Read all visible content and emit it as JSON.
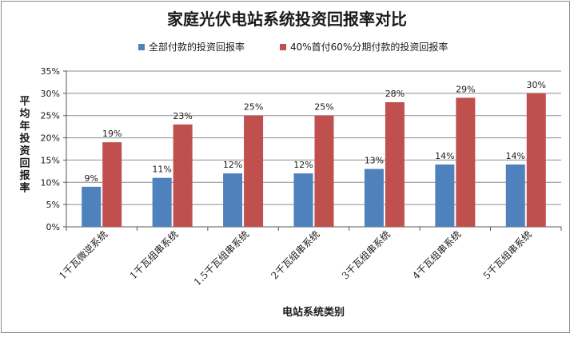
{
  "chart_data": {
    "type": "bar",
    "title": "家庭光伏电站系统投资回报率对比",
    "xlabel": "电站系统类别",
    "ylabel": "平均年投资回报率",
    "categories": [
      "1千瓦微逆系统",
      "1千瓦组串系统",
      "1.5千瓦组串系统",
      "2千瓦组串系统",
      "3千瓦组串系统",
      "4千瓦组串系统",
      "5千瓦组串系统"
    ],
    "series": [
      {
        "name": "全部付款的投资回报率",
        "color": "#4f81bd",
        "values": [
          9,
          11,
          12,
          12,
          13,
          14,
          14
        ],
        "labels": [
          "9%",
          "11%",
          "12%",
          "12%",
          "13%",
          "14%",
          "14%"
        ]
      },
      {
        "name": "40%首付60%分期付款的投资回报率",
        "color": "#c0504d",
        "values": [
          19,
          23,
          25,
          25,
          28,
          29,
          30
        ],
        "labels": [
          "19%",
          "23%",
          "25%",
          "25%",
          "28%",
          "29%",
          "30%"
        ]
      }
    ],
    "ylim": [
      0,
      35
    ],
    "yticks": [
      0,
      5,
      10,
      15,
      20,
      25,
      30,
      35
    ],
    "ytick_labels": [
      "0%",
      "5%",
      "10%",
      "15%",
      "20%",
      "25%",
      "30%",
      "35%"
    ],
    "grid": true,
    "legend": "top"
  }
}
